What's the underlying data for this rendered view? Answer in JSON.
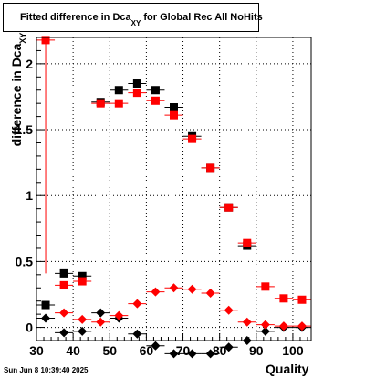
{
  "title": {
    "main": "Fitted difference in Dca",
    "sub": "XY",
    "suffix": " for Global Rec All NoHits"
  },
  "timestamp": "Sun Jun  8 10:39:40 2025",
  "chart_data": {
    "type": "scatter",
    "xlabel": "Quality",
    "ylabel": {
      "main": "difference in Dca",
      "sub": "XY"
    },
    "xlim": [
      30,
      105
    ],
    "ylim": [
      -0.1,
      2.2
    ],
    "x_ticks": [
      30,
      40,
      50,
      60,
      70,
      80,
      90,
      100
    ],
    "x_tick_labels": [
      "30",
      "40",
      "50",
      "60",
      "70",
      "80",
      "90",
      "100"
    ],
    "y_ticks": [
      0,
      0.5,
      1,
      1.5,
      2
    ],
    "y_tick_labels": [
      "0",
      "0.5",
      "1",
      "1.5",
      "2"
    ],
    "grid": true,
    "x": [
      32.5,
      37.5,
      42.5,
      47.5,
      52.5,
      57.5,
      62.5,
      67.5,
      72.5,
      77.5,
      82.5,
      87.5,
      92.5,
      97.5,
      102.5
    ],
    "series": [
      {
        "marker": "square",
        "color": "#000000",
        "values": [
          0.17,
          0.41,
          0.39,
          1.71,
          1.8,
          1.85,
          1.8,
          1.67,
          1.45,
          1.21,
          0.91,
          0.62,
          null,
          null,
          null
        ]
      },
      {
        "marker": "square",
        "color": "#ff0000",
        "values": [
          2.18,
          0.32,
          0.35,
          1.7,
          1.7,
          1.78,
          1.72,
          1.61,
          1.43,
          1.21,
          0.91,
          0.64,
          0.31,
          0.22,
          0.21
        ]
      },
      {
        "marker": "diamond",
        "color": "#000000",
        "values": [
          0.07,
          -0.04,
          -0.03,
          0.11,
          0.07,
          -0.05,
          -0.14,
          -0.2,
          -0.2,
          -0.2,
          -0.15,
          -0.1,
          -0.03,
          0.0,
          0.0
        ]
      },
      {
        "marker": "diamond",
        "color": "#ff0000",
        "values": [
          null,
          0.11,
          0.06,
          0.04,
          0.09,
          0.18,
          0.27,
          0.3,
          0.29,
          0.26,
          0.13,
          0.04,
          0.02,
          0.01,
          0.01
        ]
      }
    ]
  }
}
